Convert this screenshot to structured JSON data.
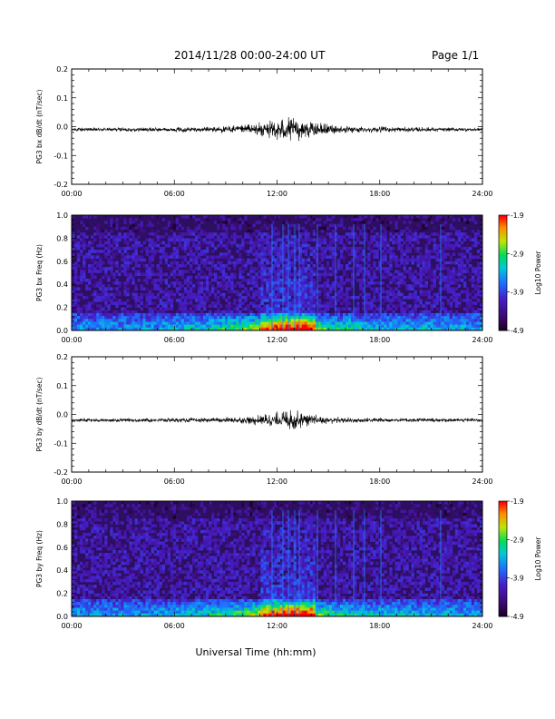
{
  "header": {
    "title": "2014/11/28  00:00-24:00 UT",
    "page": "Page 1/1"
  },
  "xaxis": {
    "label": "Universal Time (hh:mm)",
    "ticks": [
      "00:00",
      "06:00",
      "12:00",
      "18:00",
      "24:00"
    ]
  },
  "chart_data": [
    {
      "type": "line",
      "ylabel": "PG3 bx dB/dt (nT/sec)",
      "ylim": [
        -0.2,
        0.2
      ],
      "yticks": [
        "0.2",
        "0.1",
        "0.0",
        "-0.1",
        "-0.2"
      ],
      "x_range_hours": [
        0,
        24
      ],
      "baseline": -0.01,
      "envelope": {
        "x_hours": [
          0,
          4,
          8,
          10,
          11,
          12,
          12.5,
          13,
          14,
          15,
          16,
          18,
          20,
          24
        ],
        "amplitude": [
          0.008,
          0.008,
          0.01,
          0.018,
          0.028,
          0.04,
          0.05,
          0.045,
          0.03,
          0.02,
          0.014,
          0.011,
          0.009,
          0.007
        ]
      }
    },
    {
      "type": "heatmap",
      "ylabel": "PG3 bx Freq (Hz)",
      "ylim": [
        0.0,
        1.0
      ],
      "yticks": [
        "1.0",
        "0.8",
        "0.6",
        "0.4",
        "0.2",
        "0.0"
      ],
      "colorbar": {
        "label": "Log10 Power",
        "range": [
          -4.9,
          -1.9
        ],
        "ticks": [
          "-1.9",
          "-2.9",
          "-3.9",
          "-4.9"
        ]
      }
    },
    {
      "type": "line",
      "ylabel": "PG3 by dB/dt (nT/sec)",
      "ylim": [
        -0.2,
        0.2
      ],
      "yticks": [
        "0.2",
        "0.1",
        "0.0",
        "-0.1",
        "-0.2"
      ],
      "x_range_hours": [
        0,
        24
      ],
      "baseline": -0.02,
      "envelope": {
        "x_hours": [
          0,
          4,
          8,
          10,
          11,
          12,
          12.5,
          13,
          14,
          15,
          16,
          18,
          20,
          24
        ],
        "amplitude": [
          0.007,
          0.007,
          0.009,
          0.013,
          0.02,
          0.032,
          0.04,
          0.038,
          0.024,
          0.014,
          0.011,
          0.009,
          0.008,
          0.007
        ]
      }
    },
    {
      "type": "heatmap",
      "ylabel": "PG3 by Freq (Hz)",
      "ylim": [
        0.0,
        1.0
      ],
      "yticks": [
        "1.0",
        "0.8",
        "0.6",
        "0.4",
        "0.2",
        "0.0"
      ],
      "colorbar": {
        "label": "Log10 Power",
        "range": [
          -4.9,
          -1.9
        ],
        "ticks": [
          "-1.9",
          "-2.9",
          "-3.9",
          "-4.9"
        ]
      }
    }
  ]
}
